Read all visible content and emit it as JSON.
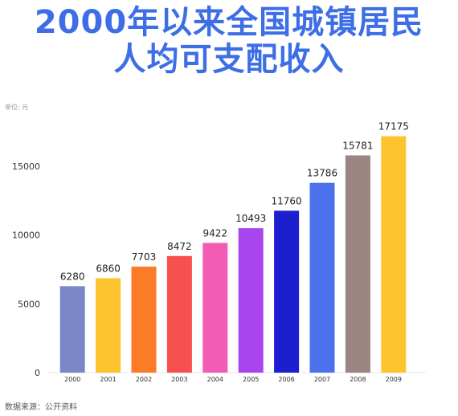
{
  "header": {
    "title_line1": "2000年以来全国城镇居民",
    "title_line2": "人均可支配收入"
  },
  "unit_label": "单位: 元",
  "source_label": "数据来源：公开资料",
  "colors": {
    "title": "#3d6ee6",
    "bars": [
      "#7b88c8",
      "#fdc42e",
      "#fb7b27",
      "#f6514f",
      "#f25cb5",
      "#a945ee",
      "#1b1fd0",
      "#4d70ec",
      "#9b8583",
      "#fdc42e"
    ]
  },
  "chart_data": {
    "type": "bar",
    "categories": [
      "2000",
      "2001",
      "2002",
      "2003",
      "2004",
      "2005",
      "2006",
      "2007",
      "2008",
      "2009"
    ],
    "values": [
      6280,
      6860,
      7703,
      8472,
      9422,
      10493,
      11760,
      13786,
      15781,
      17175
    ],
    "data_labels": [
      "6280",
      "6860",
      "7703",
      "8472",
      "9422",
      "10493",
      "11760",
      "13786",
      "15781",
      "17175"
    ],
    "yticks": [
      0,
      5000,
      10000,
      15000
    ],
    "ytick_labels": [
      "0",
      "5000",
      "10000",
      "15000"
    ],
    "ylim": [
      0,
      17500
    ],
    "title": "2000年以来全国城镇居民人均可支配收入",
    "xlabel": "",
    "ylabel": "单位: 元",
    "grid": false,
    "legend": "none"
  }
}
